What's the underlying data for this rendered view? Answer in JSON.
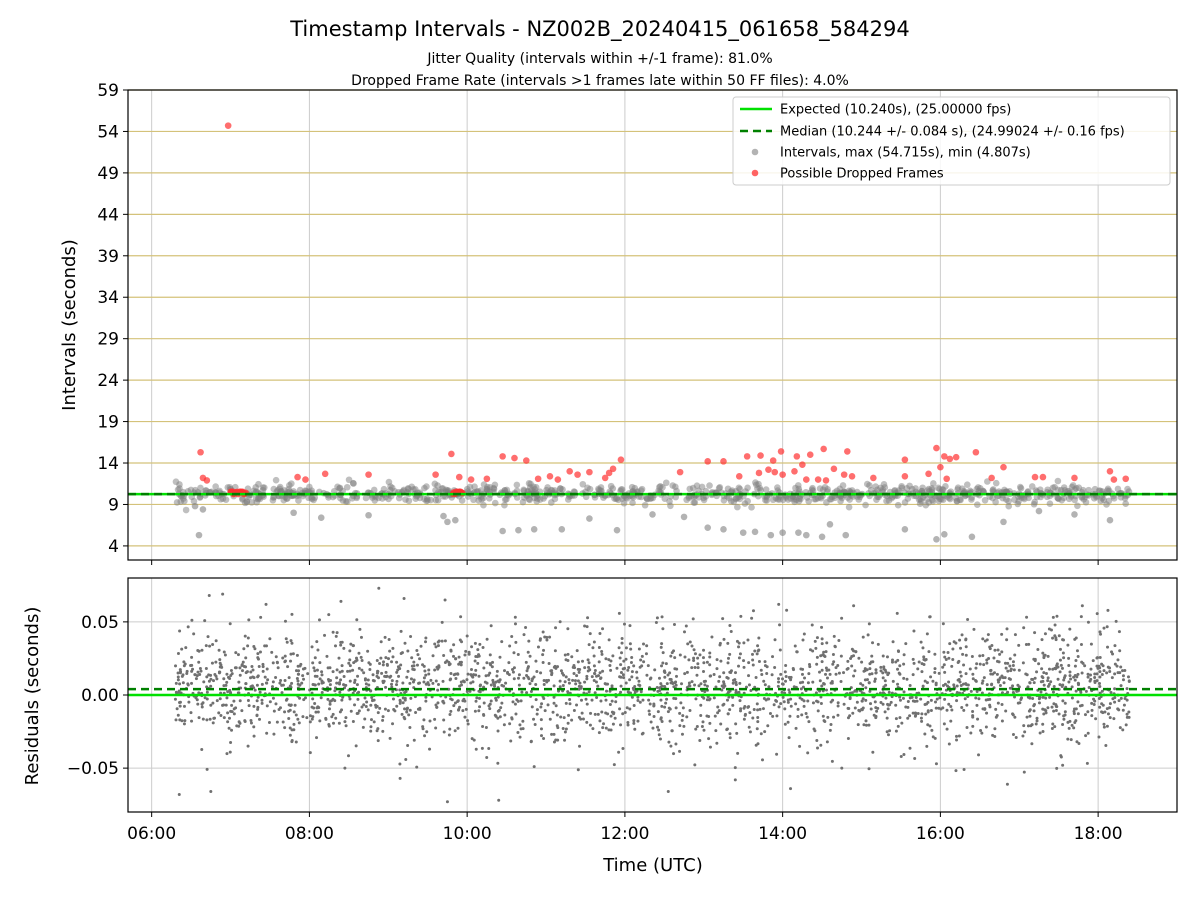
{
  "chart_data": [
    {
      "type": "scatter",
      "title": "Timestamp Intervals - NZ002B_20240415_061658_584294",
      "subtitle_lines": [
        "Jitter Quality (intervals within +/-1 frame): 81.0%",
        "Dropped Frame Rate (intervals >1 frames late within 50 FF files): 4.0%"
      ],
      "ylabel": "Intervals (seconds)",
      "xlabel": "",
      "xlim_hours": [
        5.7,
        19.0
      ],
      "ylim": [
        2.3,
        59
      ],
      "yticks": [
        4,
        9,
        14,
        19,
        24,
        29,
        34,
        39,
        44,
        49,
        54,
        59
      ],
      "grid": "horizontal golden lines at y ticks, vertical gray lines at x ticks",
      "expected": {
        "label": "Expected (10.240s), (25.00000 fps)",
        "value": 10.24,
        "color": "#00e000"
      },
      "median": {
        "label": "Median (10.244 +/- 0.084 s), (24.99024 +/- 0.16 fps)",
        "value": 10.244,
        "color": "#008000"
      },
      "intervals": {
        "label": "Intervals, max (54.715s), min (4.807s)",
        "max": 54.715,
        "min": 4.807,
        "color": "#808080",
        "outliers": [
          [
            6.6,
            5.3
          ],
          [
            6.55,
            8.8
          ],
          [
            6.65,
            8.4
          ],
          [
            7.8,
            8.0
          ],
          [
            8.15,
            7.4
          ],
          [
            8.75,
            7.7
          ],
          [
            9.7,
            7.6
          ],
          [
            9.75,
            6.9
          ],
          [
            9.85,
            7.1
          ],
          [
            10.45,
            5.8
          ],
          [
            10.65,
            5.9
          ],
          [
            10.85,
            6.0
          ],
          [
            11.2,
            6.0
          ],
          [
            11.55,
            7.3
          ],
          [
            11.9,
            5.9
          ],
          [
            12.35,
            7.8
          ],
          [
            12.75,
            7.5
          ],
          [
            13.05,
            6.2
          ],
          [
            13.25,
            6.0
          ],
          [
            13.5,
            5.6
          ],
          [
            13.65,
            5.7
          ],
          [
            13.85,
            5.3
          ],
          [
            14.0,
            5.6
          ],
          [
            14.2,
            5.6
          ],
          [
            14.3,
            5.3
          ],
          [
            14.5,
            5.1
          ],
          [
            14.6,
            6.6
          ],
          [
            14.8,
            5.3
          ],
          [
            15.55,
            6.0
          ],
          [
            15.95,
            4.8
          ],
          [
            16.05,
            5.4
          ],
          [
            16.4,
            5.1
          ],
          [
            16.8,
            6.9
          ],
          [
            17.25,
            8.2
          ],
          [
            17.7,
            7.8
          ],
          [
            18.15,
            7.1
          ]
        ]
      },
      "dropped": {
        "label": "Possible Dropped Frames",
        "color": "#ff3030",
        "points": [
          [
            6.97,
            54.7
          ],
          [
            6.62,
            15.3
          ],
          [
            6.65,
            12.2
          ],
          [
            6.7,
            11.9
          ],
          [
            7.85,
            12.3
          ],
          [
            7.95,
            12.0
          ],
          [
            8.2,
            12.7
          ],
          [
            8.75,
            12.6
          ],
          [
            9.6,
            12.6
          ],
          [
            9.8,
            15.1
          ],
          [
            9.9,
            12.3
          ],
          [
            10.05,
            12.0
          ],
          [
            10.25,
            12.1
          ],
          [
            10.45,
            14.8
          ],
          [
            10.6,
            14.6
          ],
          [
            10.75,
            14.3
          ],
          [
            10.9,
            12.1
          ],
          [
            11.05,
            12.4
          ],
          [
            11.15,
            12.0
          ],
          [
            11.3,
            13.0
          ],
          [
            11.4,
            12.6
          ],
          [
            11.55,
            12.9
          ],
          [
            11.75,
            12.2
          ],
          [
            11.8,
            12.8
          ],
          [
            11.85,
            13.3
          ],
          [
            11.95,
            14.4
          ],
          [
            12.7,
            12.9
          ],
          [
            13.05,
            14.2
          ],
          [
            13.25,
            14.2
          ],
          [
            13.45,
            12.4
          ],
          [
            13.7,
            12.8
          ],
          [
            13.82,
            13.2
          ],
          [
            13.9,
            12.9
          ],
          [
            14.0,
            12.6
          ],
          [
            14.15,
            13.0
          ],
          [
            14.3,
            12.0
          ],
          [
            14.45,
            12.0
          ],
          [
            14.55,
            11.9
          ],
          [
            14.65,
            13.3
          ],
          [
            14.78,
            12.6
          ],
          [
            14.88,
            12.4
          ],
          [
            13.55,
            14.8
          ],
          [
            13.72,
            14.9
          ],
          [
            13.88,
            14.3
          ],
          [
            13.98,
            15.4
          ],
          [
            14.18,
            14.8
          ],
          [
            14.25,
            13.8
          ],
          [
            14.35,
            15.0
          ],
          [
            14.52,
            15.7
          ],
          [
            14.82,
            15.4
          ],
          [
            15.15,
            12.2
          ],
          [
            15.55,
            14.4
          ],
          [
            15.55,
            12.4
          ],
          [
            15.85,
            12.7
          ],
          [
            15.95,
            15.8
          ],
          [
            16.0,
            13.5
          ],
          [
            16.05,
            14.8
          ],
          [
            16.12,
            14.5
          ],
          [
            16.2,
            14.7
          ],
          [
            16.08,
            12.1
          ],
          [
            16.45,
            15.3
          ],
          [
            16.65,
            12.2
          ],
          [
            16.8,
            13.5
          ],
          [
            17.2,
            12.3
          ],
          [
            17.3,
            12.3
          ],
          [
            17.7,
            12.2
          ],
          [
            18.15,
            13.0
          ],
          [
            18.2,
            12.0
          ],
          [
            18.35,
            12.1
          ]
        ],
        "clusters": [
          {
            "from": 7.0,
            "to": 7.2,
            "value": 10.4
          },
          {
            "from": 9.82,
            "to": 9.95,
            "value": 10.4
          }
        ]
      },
      "legend_position": "upper right"
    },
    {
      "type": "scatter",
      "title": "",
      "ylabel": "Residuals (seconds)",
      "xlabel": "Time (UTC)",
      "xlim_hours": [
        5.7,
        19.0
      ],
      "ylim": [
        -0.08,
        0.08
      ],
      "yticks": [
        0.05,
        0.0,
        -0.05
      ],
      "ytick_labels": [
        "0.05",
        "0.00",
        "−0.05"
      ],
      "xticks_hours": [
        6,
        8,
        10,
        12,
        14,
        16,
        18
      ],
      "xtick_labels": [
        "06:00",
        "08:00",
        "10:00",
        "12:00",
        "14:00",
        "16:00",
        "18:00"
      ],
      "grid": true,
      "expected_line": 0.0,
      "median_line": 0.004,
      "residual_spread": {
        "typical_min": -0.05,
        "typical_max": 0.05,
        "extreme_min": -0.073,
        "extreme_max": 0.073
      },
      "residual_extremes": [
        [
          8.88,
          0.073
        ],
        [
          6.9,
          0.069
        ],
        [
          6.73,
          0.068
        ],
        [
          9.2,
          0.066
        ],
        [
          8.4,
          0.064
        ],
        [
          7.45,
          0.062
        ],
        [
          9.72,
          0.065
        ],
        [
          17.8,
          0.061
        ],
        [
          14.9,
          0.061
        ],
        [
          13.95,
          0.062
        ],
        [
          9.75,
          -0.073
        ],
        [
          10.4,
          -0.072
        ],
        [
          6.35,
          -0.068
        ],
        [
          6.75,
          -0.066
        ],
        [
          14.1,
          -0.064
        ],
        [
          12.55,
          -0.066
        ],
        [
          16.85,
          -0.061
        ],
        [
          9.15,
          -0.057
        ],
        [
          13.4,
          -0.058
        ],
        [
          8.45,
          -0.05
        ],
        [
          10.85,
          -0.049
        ],
        [
          14.75,
          -0.05
        ],
        [
          15.95,
          -0.047
        ],
        [
          17.55,
          -0.048
        ]
      ],
      "point_color": "#707070"
    }
  ]
}
